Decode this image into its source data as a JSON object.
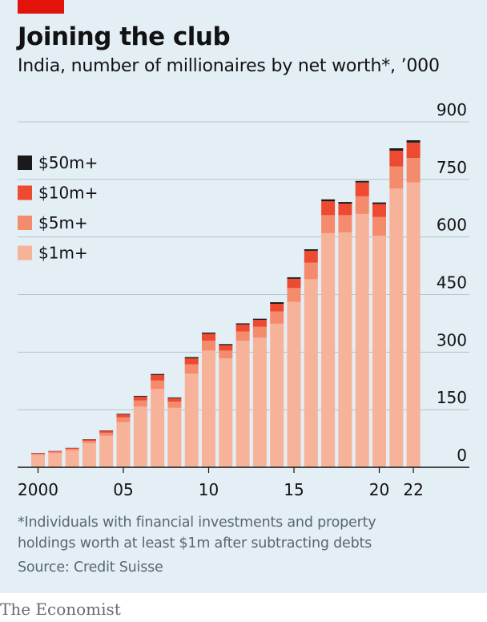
{
  "title": "Joining the club",
  "subtitle": "India, number of millionaires by net worth*, ’000",
  "footnote": "*Individuals with financial investments and property holdings worth at least $1m after subtracting debts",
  "footnote_line1": "*Individuals with financial investments and property",
  "footnote_line2": "holdings worth at least $1m after subtracting debts",
  "source": "Source: Credit Suisse",
  "brand": "The Economist",
  "colors": {
    "background": "#e3eef5",
    "accent": "#e3120b",
    "grid": "#b4c3ce",
    "axis": "#121212",
    "series": [
      "#f7b29a",
      "#f58b6d",
      "#ed4a31",
      "#1a1a1a"
    ]
  },
  "chart_data": {
    "type": "bar",
    "stacked": true,
    "years": [
      2000,
      2001,
      2002,
      2003,
      2004,
      2005,
      2006,
      2007,
      2008,
      2009,
      2010,
      2011,
      2012,
      2013,
      2014,
      2015,
      2016,
      2017,
      2018,
      2019,
      2020,
      2021,
      2022
    ],
    "x_tick_labels": [
      {
        "year": 2000,
        "label": "2000"
      },
      {
        "year": 2005,
        "label": "05"
      },
      {
        "year": 2010,
        "label": "10"
      },
      {
        "year": 2015,
        "label": "15"
      },
      {
        "year": 2020,
        "label": "20"
      },
      {
        "year": 2022,
        "label": "22"
      }
    ],
    "y_ticks": [
      0,
      150,
      300,
      450,
      600,
      750,
      900
    ],
    "y_tick_labels": [
      "0",
      "150",
      "300",
      "450",
      "600",
      "750",
      "900"
    ],
    "ylim": [
      0,
      900
    ],
    "grid": true,
    "legend_position": "top-left",
    "series": [
      {
        "name": "$1m+",
        "values": [
          32,
          37,
          44,
          63,
          82,
          118,
          158,
          204,
          155,
          244,
          304,
          284,
          330,
          338,
          374,
          431,
          490,
          610,
          612,
          660,
          603,
          726,
          742
        ]
      },
      {
        "name": "$5m+",
        "values": [
          3,
          3,
          4,
          6,
          8,
          12,
          16,
          22,
          16,
          24,
          26,
          20,
          24,
          28,
          32,
          36,
          43,
          47,
          45,
          46,
          49,
          58,
          64
        ]
      },
      {
        "name": "$10m+",
        "values": [
          2,
          2,
          2,
          3,
          5,
          8,
          10,
          14,
          9,
          16,
          18,
          14,
          18,
          18,
          20,
          24,
          31,
          36,
          30,
          36,
          34,
          41,
          40
        ]
      },
      {
        "name": "$50m+",
        "values": [
          0.5,
          0.5,
          0.5,
          1,
          1,
          1.5,
          2,
          3,
          2,
          3,
          3,
          3,
          3,
          3,
          4,
          4,
          4,
          5,
          4,
          4,
          4,
          6,
          6
        ]
      }
    ]
  }
}
